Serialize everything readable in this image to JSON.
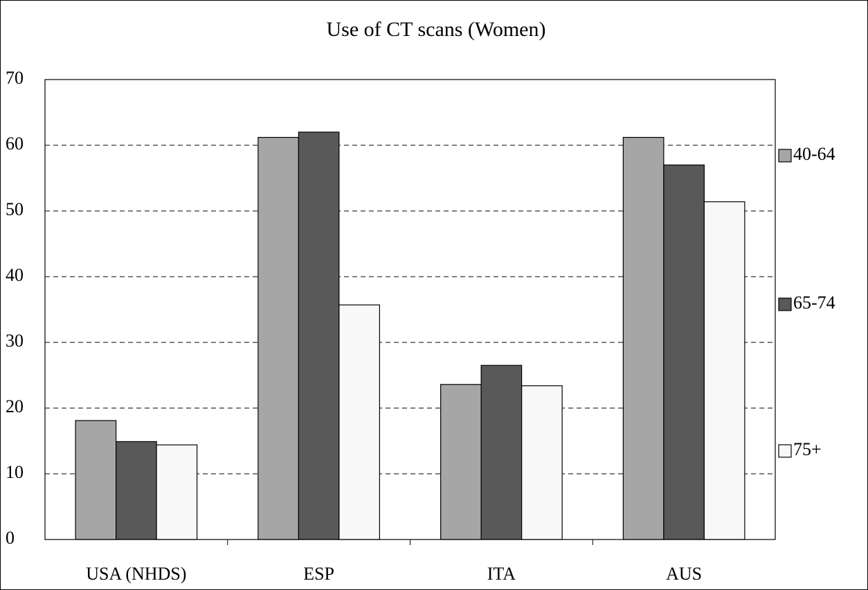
{
  "chart_data": {
    "type": "bar",
    "title": "Use of CT scans (Women)",
    "categories": [
      "USA (NHDS)",
      "ESP",
      "ITA",
      "AUS"
    ],
    "series": [
      {
        "name": "40-64",
        "color": "#a6a6a6",
        "values": [
          18.1,
          61.2,
          23.6,
          61.2
        ]
      },
      {
        "name": "65-74",
        "color": "#595959",
        "values": [
          14.9,
          62.0,
          26.5,
          57.0
        ]
      },
      {
        "name": "75+",
        "color": "#f8f8f8",
        "values": [
          14.4,
          35.7,
          23.4,
          51.4
        ]
      }
    ],
    "ylim": [
      0,
      70
    ],
    "yticks": [
      0,
      10,
      20,
      30,
      40,
      50,
      60,
      70
    ],
    "grid": true,
    "legend": "right"
  }
}
